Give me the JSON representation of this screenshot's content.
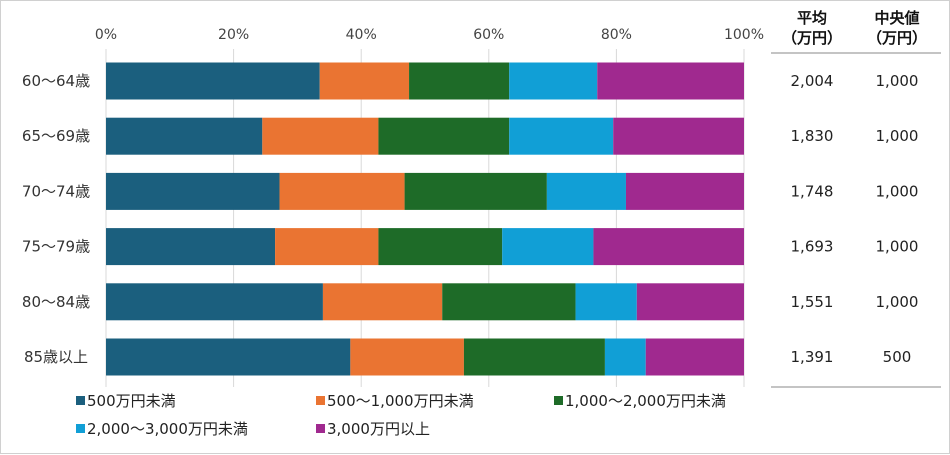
{
  "chart_data": {
    "type": "bar",
    "stacked": "percent",
    "orientation": "horizontal",
    "xlim": [
      0,
      100
    ],
    "x_ticks": [
      "0%",
      "20%",
      "40%",
      "60%",
      "80%",
      "100%"
    ],
    "grid": "vertical",
    "legend_position": "bottom",
    "categories": [
      "60～64歳",
      "65～69歳",
      "70～74歳",
      "75～79歳",
      "80～84歳",
      "85歳以上"
    ],
    "series": [
      {
        "name": "500万円未満",
        "color": "#1b5f7e",
        "values": [
          33.5,
          24.5,
          27.2,
          26.5,
          34.0,
          38.3
        ]
      },
      {
        "name": "500～1,000万円未満",
        "color": "#ea7432",
        "values": [
          14.0,
          18.2,
          19.6,
          16.2,
          18.7,
          17.8
        ]
      },
      {
        "name": "1,000～2,000万円未満",
        "color": "#1e6b28",
        "values": [
          15.7,
          20.5,
          22.3,
          19.4,
          20.9,
          22.1
        ]
      },
      {
        "name": "2,000～3,000万円未満",
        "color": "#119fd6",
        "values": [
          13.8,
          16.3,
          12.4,
          14.3,
          9.6,
          6.4
        ]
      },
      {
        "name": "3,000万円以上",
        "color": "#a0298f",
        "values": [
          23.0,
          20.5,
          18.5,
          23.6,
          16.8,
          15.4
        ]
      }
    ],
    "table": {
      "headers": [
        [
          "平均",
          "（万円）"
        ],
        [
          "中央値",
          "（万円）"
        ]
      ],
      "average": [
        "2,004",
        "1,830",
        "1,748",
        "1,693",
        "1,551",
        "1,391"
      ],
      "median": [
        "1,000",
        "1,000",
        "1,000",
        "1,000",
        "1,000",
        "500"
      ]
    }
  }
}
